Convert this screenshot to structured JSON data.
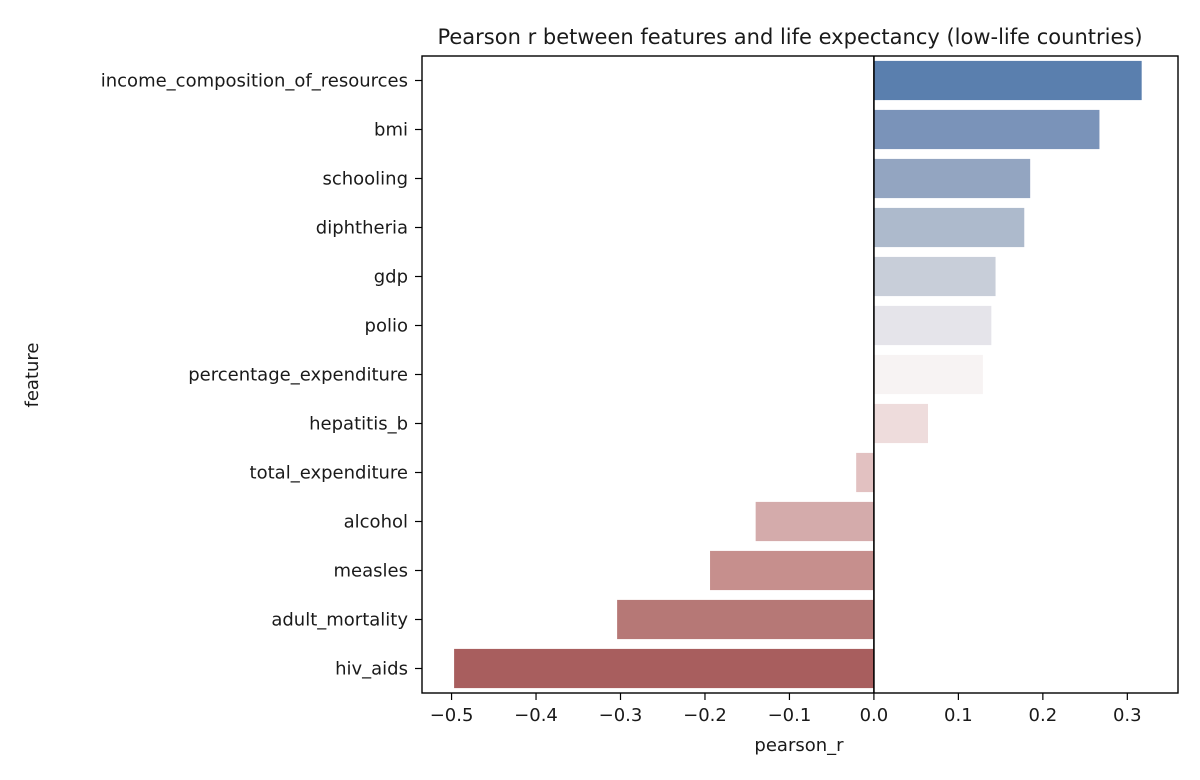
{
  "chart_data": {
    "type": "bar",
    "orientation": "horizontal",
    "title": "Pearson r between features and life expectancy (low-life countries)",
    "xlabel": "pearson_r",
    "ylabel": "feature",
    "categories": [
      "income_composition_of_resources",
      "bmi",
      "schooling",
      "diphtheria",
      "gdp",
      "polio",
      "percentage_expenditure",
      "hepatitis_b",
      "total_expenditure",
      "alcohol",
      "measles",
      "adult_mortality",
      "hiv_aids"
    ],
    "values": [
      0.317,
      0.267,
      0.185,
      0.178,
      0.144,
      0.139,
      0.129,
      0.064,
      -0.021,
      -0.14,
      -0.194,
      -0.304,
      -0.497
    ],
    "colors": [
      "#5a7fae",
      "#7a93b9",
      "#93a5c1",
      "#adbacc",
      "#c8ced9",
      "#e5e4ea",
      "#f7f3f3",
      "#eedcdc",
      "#e2c1c1",
      "#d4abab",
      "#c68f8d",
      "#b67876",
      "#a85e5e"
    ],
    "xlim": [
      -0.535,
      0.36
    ],
    "xticks": [
      -0.5,
      -0.4,
      -0.3,
      -0.2,
      -0.1,
      0.0,
      0.1,
      0.2,
      0.3
    ],
    "xtick_labels": [
      "−0.5",
      "−0.4",
      "−0.3",
      "−0.2",
      "−0.1",
      "0.0",
      "0.1",
      "0.2",
      "0.3"
    ],
    "zero_line": true,
    "grid": false
  }
}
